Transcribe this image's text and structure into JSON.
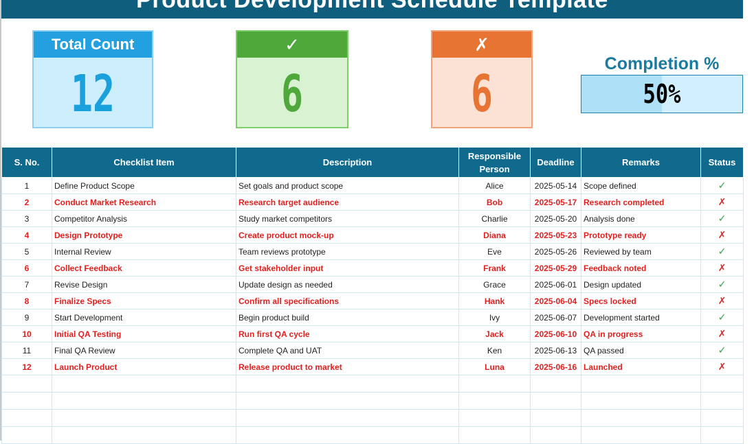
{
  "title": "Product Development Schedule Template",
  "cards": {
    "total": {
      "label": "Total Count",
      "value": "12",
      "color": "#22a0e0"
    },
    "completed": {
      "label": "✓",
      "value": "6",
      "color": "#4ea83a"
    },
    "pending": {
      "label": "✗",
      "value": "6",
      "color": "#e87434"
    }
  },
  "completion": {
    "label": "Completion %",
    "value_text": "50%",
    "fraction": 0.5
  },
  "table": {
    "headers": [
      "S. No.",
      "Checklist Item",
      "Description",
      "Responsible Person",
      "Deadline",
      "Remarks",
      "Status"
    ],
    "rows": [
      {
        "no": "1",
        "item": "Define Product Scope",
        "desc": "Set goals and product scope",
        "person": "Alice",
        "deadline": "2025-05-14",
        "remarks": "Scope defined",
        "status": "✓",
        "done": true
      },
      {
        "no": "2",
        "item": "Conduct Market Research",
        "desc": "Research target audience",
        "person": "Bob",
        "deadline": "2025-05-17",
        "remarks": "Research completed",
        "status": "✗",
        "done": false
      },
      {
        "no": "3",
        "item": "Competitor Analysis",
        "desc": "Study market competitors",
        "person": "Charlie",
        "deadline": "2025-05-20",
        "remarks": "Analysis done",
        "status": "✓",
        "done": true
      },
      {
        "no": "4",
        "item": "Design Prototype",
        "desc": "Create product mock-up",
        "person": "Diana",
        "deadline": "2025-05-23",
        "remarks": "Prototype ready",
        "status": "✗",
        "done": false
      },
      {
        "no": "5",
        "item": "Internal Review",
        "desc": "Team reviews prototype",
        "person": "Eve",
        "deadline": "2025-05-26",
        "remarks": "Reviewed by team",
        "status": "✓",
        "done": true
      },
      {
        "no": "6",
        "item": "Collect Feedback",
        "desc": "Get stakeholder input",
        "person": "Frank",
        "deadline": "2025-05-29",
        "remarks": "Feedback noted",
        "status": "✗",
        "done": false
      },
      {
        "no": "7",
        "item": "Revise Design",
        "desc": "Update design as needed",
        "person": "Grace",
        "deadline": "2025-06-01",
        "remarks": "Design updated",
        "status": "✓",
        "done": true
      },
      {
        "no": "8",
        "item": "Finalize Specs",
        "desc": "Confirm all specifications",
        "person": "Hank",
        "deadline": "2025-06-04",
        "remarks": "Specs locked",
        "status": "✗",
        "done": false
      },
      {
        "no": "9",
        "item": "Start Development",
        "desc": "Begin product build",
        "person": "Ivy",
        "deadline": "2025-06-07",
        "remarks": "Development started",
        "status": "✓",
        "done": true
      },
      {
        "no": "10",
        "item": "Initial QA Testing",
        "desc": "Run first QA cycle",
        "person": "Jack",
        "deadline": "2025-06-10",
        "remarks": "QA in progress",
        "status": "✗",
        "done": false
      },
      {
        "no": "11",
        "item": "Final QA Review",
        "desc": "Complete QA and UAT",
        "person": "Ken",
        "deadline": "2025-06-13",
        "remarks": "QA passed",
        "status": "✓",
        "done": true
      },
      {
        "no": "12",
        "item": "Launch Product",
        "desc": "Release product to market",
        "person": "Luna",
        "deadline": "2025-06-16",
        "remarks": "Launched",
        "status": "✗",
        "done": false
      }
    ]
  }
}
